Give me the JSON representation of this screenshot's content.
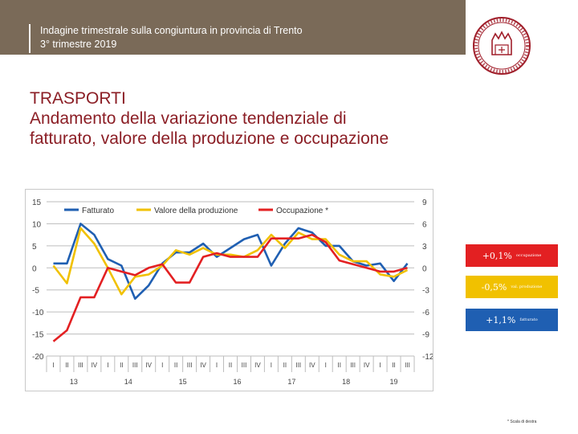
{
  "header": {
    "line1": "Indagine trimestrale sulla congiuntura in provincia di Trento",
    "line2": "3° trimestre 2019"
  },
  "logo": {
    "icon": "chamber-of-commerce-seal-icon",
    "color": "#a01e2a"
  },
  "title": {
    "line1": "TRASPORTI",
    "line2": "Andamento della variazione tendenziale di",
    "line3": "fatturato, valore della produzione e occupazione"
  },
  "chart_data": {
    "type": "line",
    "legend_position": "top",
    "grid": true,
    "left_axis": {
      "ylim": [
        -20,
        15
      ],
      "ticks": [
        "15",
        "10",
        "5",
        "0",
        "-5",
        "-10",
        "-15",
        "-20"
      ]
    },
    "right_axis": {
      "ylim": [
        -12,
        9
      ],
      "ticks": [
        "9",
        "6",
        "3",
        "0",
        "-3",
        "-6",
        "-9",
        "-12"
      ]
    },
    "quarter_labels": [
      "I",
      "II",
      "III",
      "IV",
      "I",
      "II",
      "III",
      "IV",
      "I",
      "II",
      "III",
      "IV",
      "I",
      "II",
      "III",
      "IV",
      "I",
      "II",
      "III",
      "IV",
      "I",
      "II",
      "III",
      "IV",
      "I",
      "II",
      "III"
    ],
    "year_labels": [
      "13",
      "14",
      "15",
      "16",
      "17",
      "18",
      "19"
    ],
    "series": [
      {
        "name": "Fatturato",
        "axis": "left",
        "color": "#1f5fb2",
        "values": [
          1,
          1,
          10,
          7.5,
          2,
          0.5,
          -7,
          -4,
          1,
          3.5,
          3.5,
          5.5,
          2.5,
          4.5,
          6.5,
          7.5,
          0.5,
          5.5,
          9,
          8,
          5,
          5,
          1.5,
          0.5,
          1,
          -3,
          1
        ]
      },
      {
        "name": "Valore della produzione",
        "axis": "left",
        "color": "#f1c100",
        "values": [
          0.5,
          -3.5,
          9,
          5.5,
          0,
          -6,
          -2,
          -1.5,
          0.5,
          4,
          3,
          4.5,
          3,
          3,
          2.5,
          4,
          7.5,
          4.5,
          8,
          6.5,
          6.5,
          3,
          1.5,
          1.5,
          -1.5,
          -2,
          -0.5
        ]
      },
      {
        "name": "Occupazione *",
        "axis": "right",
        "color": "#e32022",
        "values": [
          -10,
          -8.5,
          -4,
          -4,
          0,
          -0.5,
          -1,
          0,
          0.5,
          -2,
          -2,
          1.5,
          2,
          1.5,
          1.5,
          1.5,
          4,
          4,
          4,
          4.5,
          3.5,
          1,
          0.5,
          0,
          -0.5,
          -0.5,
          0
        ]
      }
    ]
  },
  "tags": [
    {
      "value": "+0,1%",
      "label": "occupazione"
    },
    {
      "value": "-0,5%",
      "label": "val. produzione"
    },
    {
      "value": "+1,1%",
      "label": "fatturato"
    }
  ],
  "footnote": "* Scala di destra"
}
